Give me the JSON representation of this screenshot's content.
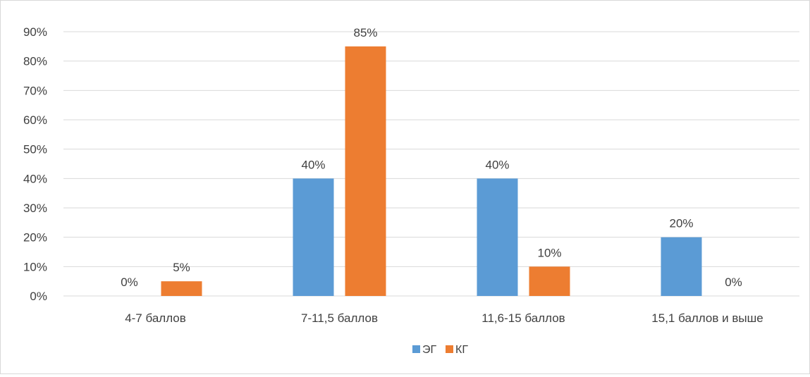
{
  "chart_data": {
    "type": "bar",
    "categories": [
      "4-7 баллов",
      "7-11,5 баллов",
      "11,6-15 баллов",
      "15,1 баллов и выше"
    ],
    "series": [
      {
        "name": "ЭГ",
        "color": "#5B9BD5",
        "values": [
          0,
          40,
          40,
          20
        ],
        "labels": [
          "0%",
          "40%",
          "40%",
          "20%"
        ]
      },
      {
        "name": "КГ",
        "color": "#ED7D31",
        "values": [
          5,
          85,
          10,
          0
        ],
        "labels": [
          "5%",
          "85%",
          "10%",
          "0%"
        ]
      }
    ],
    "yticks": [
      "0%",
      "10%",
      "20%",
      "30%",
      "40%",
      "50%",
      "60%",
      "70%",
      "80%",
      "90%"
    ],
    "ylim": [
      0,
      90
    ],
    "unit": "%",
    "grid": true,
    "legend_position": "bottom",
    "title": "",
    "xlabel": "",
    "ylabel": ""
  }
}
